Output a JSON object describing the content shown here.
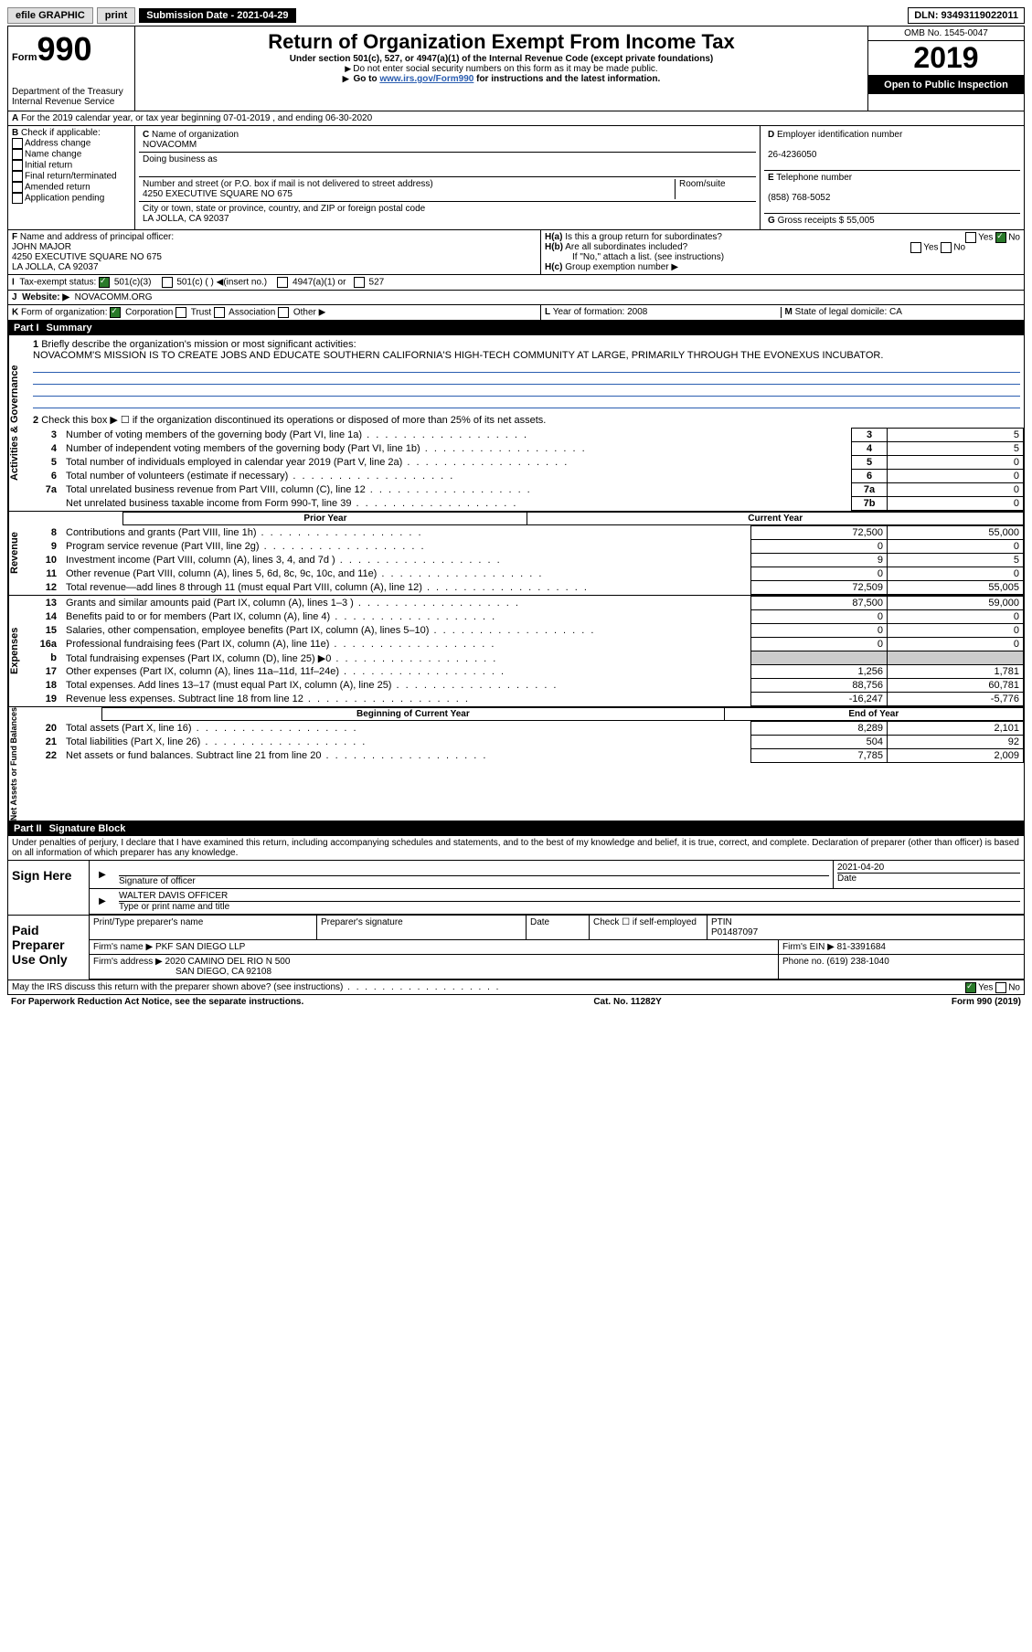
{
  "topbar": {
    "efile": "efile GRAPHIC",
    "print": "print",
    "subdate_label": "Submission Date - 2021-04-29",
    "dln": "DLN: 93493119022011"
  },
  "header": {
    "form": "Form",
    "form_no": "990",
    "dept": "Department of the Treasury",
    "irs": "Internal Revenue Service",
    "title": "Return of Organization Exempt From Income Tax",
    "sub1": "Under section 501(c), 527, or 4947(a)(1) of the Internal Revenue Code (except private foundations)",
    "sub2": "Do not enter social security numbers on this form as it may be made public.",
    "sub3_pre": "Go to ",
    "sub3_link": "www.irs.gov/Form990",
    "sub3_post": " for instructions and the latest information.",
    "omb": "OMB No. 1545-0047",
    "year": "2019",
    "open": "Open to Public Inspection"
  },
  "line_a": "For the 2019 calendar year, or tax year beginning 07-01-2019   , and ending 06-30-2020",
  "box_b": {
    "label": "Check if applicable:",
    "opts": [
      "Address change",
      "Name change",
      "Initial return",
      "Final return/terminated",
      "Amended return",
      "Application pending"
    ]
  },
  "box_c": {
    "name_label": "Name of organization",
    "name": "NOVACOMM",
    "dba_label": "Doing business as",
    "addr_label": "Number and street (or P.O. box if mail is not delivered to street address)",
    "room": "Room/suite",
    "addr": "4250 EXECUTIVE SQUARE NO 675",
    "city_label": "City or town, state or province, country, and ZIP or foreign postal code",
    "city": "LA JOLLA, CA  92037"
  },
  "box_d": {
    "label": "Employer identification number",
    "val": "26-4236050"
  },
  "box_e": {
    "label": "Telephone number",
    "val": "(858) 768-5052"
  },
  "box_g": {
    "label": "Gross receipts $",
    "val": "55,005"
  },
  "box_f": {
    "label": "Name and address of principal officer:",
    "name": "JOHN MAJOR",
    "addr1": "4250 EXECUTIVE SQUARE NO 675",
    "addr2": "LA JOLLA, CA  92037"
  },
  "box_h": {
    "ha": "Is this a group return for subordinates?",
    "hb": "Are all subordinates included?",
    "hnote": "If \"No,\" attach a list. (see instructions)",
    "hc": "Group exemption number ▶"
  },
  "tax_exempt": {
    "label": "Tax-exempt status:",
    "o1": "501(c)(3)",
    "o2": "501(c) (   ) ◀(insert no.)",
    "o3": "4947(a)(1) or",
    "o4": "527"
  },
  "box_j": {
    "label": "Website: ▶",
    "val": "NOVACOMM.ORG"
  },
  "box_k": {
    "label": "Form of organization:",
    "o1": "Corporation",
    "o2": "Trust",
    "o3": "Association",
    "o4": "Other ▶"
  },
  "box_l": {
    "label": "Year of formation:",
    "val": "2008"
  },
  "box_m": {
    "label": "State of legal domicile:",
    "val": "CA"
  },
  "part1": {
    "hdr": "Part I",
    "title": "Summary",
    "q1": "Briefly describe the organization's mission or most significant activities:",
    "q1_text": "NOVACOMM'S MISSION IS TO CREATE JOBS AND EDUCATE SOUTHERN CALIFORNIA'S HIGH-TECH COMMUNITY AT LARGE, PRIMARILY THROUGH THE EVONEXUS INCUBATOR.",
    "q2": "Check this box ▶ ☐ if the organization discontinued its operations or disposed of more than 25% of its net assets.",
    "governance_label": "Activities & Governance",
    "revenue_label": "Revenue",
    "expenses_label": "Expenses",
    "netassets_label": "Net Assets or Fund Balances",
    "lines_gov": [
      {
        "n": "3",
        "t": "Number of voting members of the governing body (Part VI, line 1a)",
        "b": "3",
        "v": "5"
      },
      {
        "n": "4",
        "t": "Number of independent voting members of the governing body (Part VI, line 1b)",
        "b": "4",
        "v": "5"
      },
      {
        "n": "5",
        "t": "Total number of individuals employed in calendar year 2019 (Part V, line 2a)",
        "b": "5",
        "v": "0"
      },
      {
        "n": "6",
        "t": "Total number of volunteers (estimate if necessary)",
        "b": "6",
        "v": "0"
      },
      {
        "n": "7a",
        "t": "Total unrelated business revenue from Part VIII, column (C), line 12",
        "b": "7a",
        "v": "0"
      },
      {
        "n": "",
        "t": "Net unrelated business taxable income from Form 990-T, line 39",
        "b": "7b",
        "v": "0"
      }
    ],
    "col_prior": "Prior Year",
    "col_current": "Current Year",
    "lines_rev": [
      {
        "n": "8",
        "t": "Contributions and grants (Part VIII, line 1h)",
        "p": "72,500",
        "c": "55,000"
      },
      {
        "n": "9",
        "t": "Program service revenue (Part VIII, line 2g)",
        "p": "0",
        "c": "0"
      },
      {
        "n": "10",
        "t": "Investment income (Part VIII, column (A), lines 3, 4, and 7d )",
        "p": "9",
        "c": "5"
      },
      {
        "n": "11",
        "t": "Other revenue (Part VIII, column (A), lines 5, 6d, 8c, 9c, 10c, and 11e)",
        "p": "0",
        "c": "0"
      },
      {
        "n": "12",
        "t": "Total revenue—add lines 8 through 11 (must equal Part VIII, column (A), line 12)",
        "p": "72,509",
        "c": "55,005"
      }
    ],
    "lines_exp": [
      {
        "n": "13",
        "t": "Grants and similar amounts paid (Part IX, column (A), lines 1–3 )",
        "p": "87,500",
        "c": "59,000"
      },
      {
        "n": "14",
        "t": "Benefits paid to or for members (Part IX, column (A), line 4)",
        "p": "0",
        "c": "0"
      },
      {
        "n": "15",
        "t": "Salaries, other compensation, employee benefits (Part IX, column (A), lines 5–10)",
        "p": "0",
        "c": "0"
      },
      {
        "n": "16a",
        "t": "Professional fundraising fees (Part IX, column (A), line 11e)",
        "p": "0",
        "c": "0"
      },
      {
        "n": "b",
        "t": "Total fundraising expenses (Part IX, column (D), line 25) ▶0",
        "p": "",
        "c": "",
        "shade": true
      },
      {
        "n": "17",
        "t": "Other expenses (Part IX, column (A), lines 11a–11d, 11f–24e)",
        "p": "1,256",
        "c": "1,781"
      },
      {
        "n": "18",
        "t": "Total expenses. Add lines 13–17 (must equal Part IX, column (A), line 25)",
        "p": "88,756",
        "c": "60,781"
      },
      {
        "n": "19",
        "t": "Revenue less expenses. Subtract line 18 from line 12",
        "p": "-16,247",
        "c": "-5,776"
      }
    ],
    "col_begin": "Beginning of Current Year",
    "col_end": "End of Year",
    "lines_net": [
      {
        "n": "20",
        "t": "Total assets (Part X, line 16)",
        "p": "8,289",
        "c": "2,101"
      },
      {
        "n": "21",
        "t": "Total liabilities (Part X, line 26)",
        "p": "504",
        "c": "92"
      },
      {
        "n": "22",
        "t": "Net assets or fund balances. Subtract line 21 from line 20",
        "p": "7,785",
        "c": "2,009"
      }
    ]
  },
  "part2": {
    "hdr": "Part II",
    "title": "Signature Block",
    "decl": "Under penalties of perjury, I declare that I have examined this return, including accompanying schedules and statements, and to the best of my knowledge and belief, it is true, correct, and complete. Declaration of preparer (other than officer) is based on all information of which preparer has any knowledge.",
    "sign_here": "Sign Here",
    "sig_officer": "Signature of officer",
    "sig_date": "2021-04-20",
    "date_label": "Date",
    "officer_name": "WALTER DAVIS OFFICER",
    "type_label": "Type or print name and title",
    "paid": "Paid Preparer Use Only",
    "prep_name_label": "Print/Type preparer's name",
    "prep_sig_label": "Preparer's signature",
    "check_self": "Check ☐ if self-employed",
    "ptin_label": "PTIN",
    "ptin": "P01487097",
    "firm_name_label": "Firm's name   ▶",
    "firm_name": "PKF SAN DIEGO LLP",
    "firm_ein_label": "Firm's EIN ▶",
    "firm_ein": "81-3391684",
    "firm_addr_label": "Firm's address ▶",
    "firm_addr": "2020 CAMINO DEL RIO N 500",
    "firm_city": "SAN DIEGO, CA  92108",
    "phone_label": "Phone no.",
    "phone": "(619) 238-1040",
    "discuss": "May the IRS discuss this return with the preparer shown above? (see instructions)"
  },
  "footer": {
    "left": "For Paperwork Reduction Act Notice, see the separate instructions.",
    "mid": "Cat. No. 11282Y",
    "right": "Form 990 (2019)"
  }
}
